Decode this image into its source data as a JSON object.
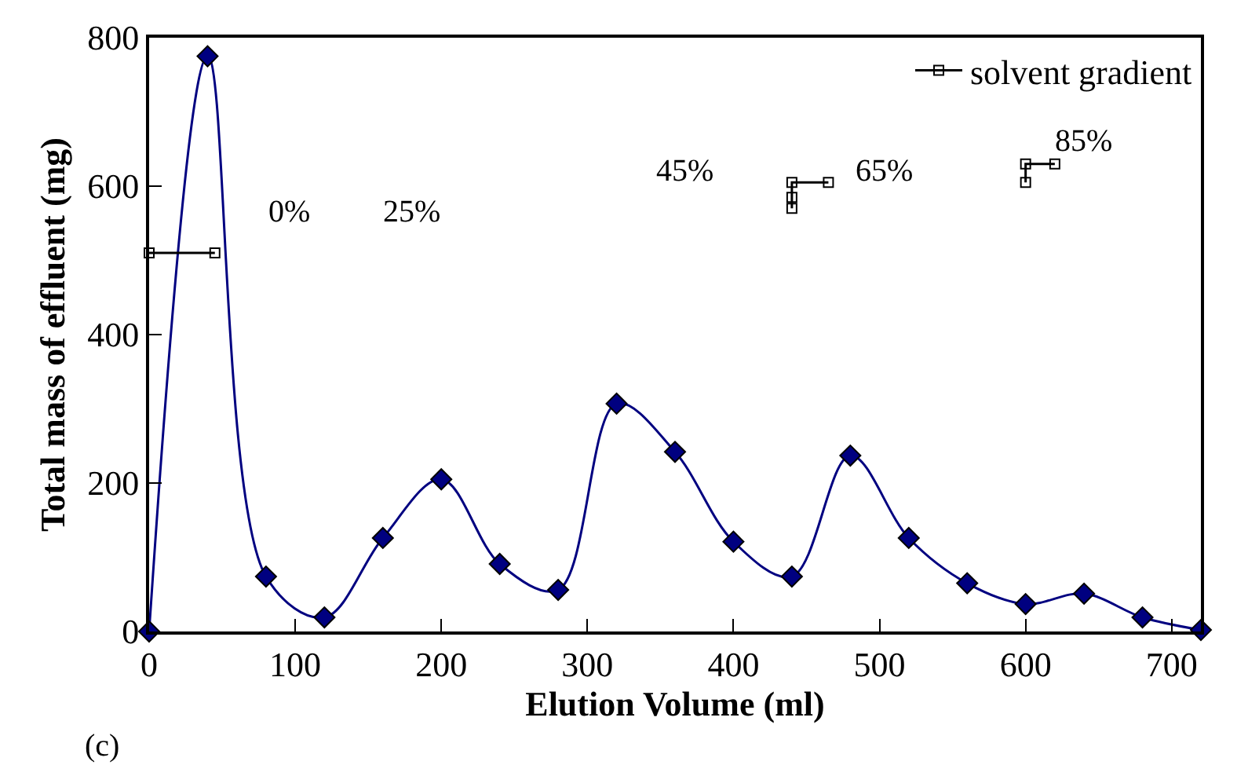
{
  "chart_data": {
    "type": "line",
    "xlabel": "Elution Volume (ml)",
    "ylabel": "Total mass of effluent (mg)",
    "xlim": [
      0,
      720
    ],
    "xticks": [
      0,
      100,
      200,
      300,
      400,
      500,
      600,
      700
    ],
    "ylim": [
      0,
      800
    ],
    "yticks": [
      0,
      200,
      400,
      600,
      800
    ],
    "legend": "top right",
    "series": [
      {
        "color": "#000080",
        "marker": "diamond",
        "x": [
          0,
          40,
          80,
          120,
          160,
          200,
          240,
          280,
          320,
          360,
          400,
          440,
          480,
          520,
          560,
          600,
          640,
          680,
          720
        ],
        "values": [
          0,
          775,
          74,
          19,
          126,
          205,
          91,
          56,
          307,
          242,
          121,
          74,
          237,
          126,
          65,
          37,
          51,
          19,
          2
        ]
      },
      {
        "name": "solvent gradient",
        "color": "#000000",
        "marker": "square",
        "type": "step",
        "x": [
          0,
          45,
          50,
          440,
          440,
          440,
          465,
          470,
          600,
          600,
          620
        ],
        "values": [
          510,
          510,
          null,
          570,
          585,
          605,
          605,
          null,
          605,
          630,
          630
        ]
      }
    ],
    "annotations": [
      "0%",
      "25%",
      "45%",
      "65%",
      "85%",
      "(c)"
    ]
  }
}
